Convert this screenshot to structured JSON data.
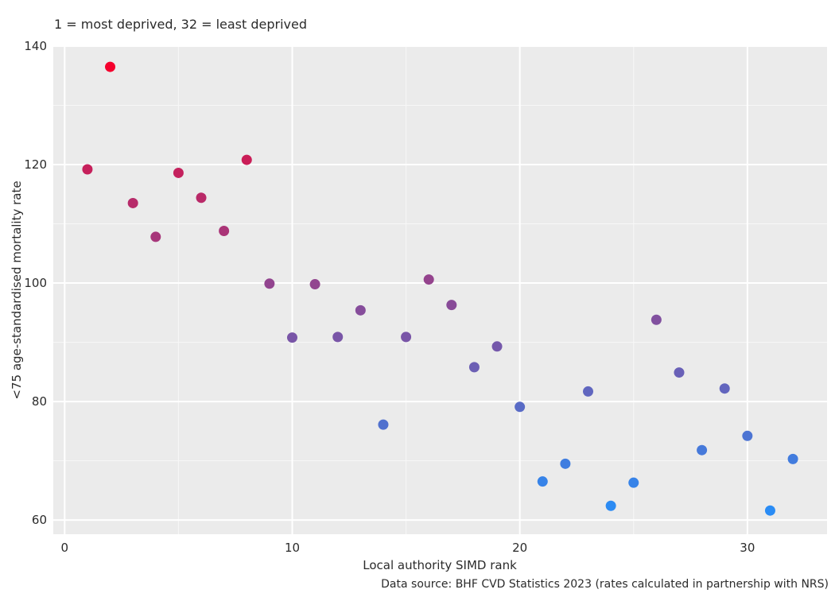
{
  "chart_data": {
    "type": "scatter",
    "subtitle": "1 = most deprived, 32 = least deprived",
    "xlabel": "Local authority SIMD rank",
    "ylabel": "<75 age-standardised mortality rate",
    "caption": "Data source: BHF CVD Statistics 2023 (rates calculated in partnership with NRS)",
    "xlim": [
      -0.5,
      33.5
    ],
    "ylim": [
      57.6,
      140
    ],
    "xticks": [
      0,
      10,
      20,
      30
    ],
    "yticks": [
      60,
      80,
      100,
      120,
      140
    ],
    "grid": true,
    "legend": "none",
    "color_low": "#2a8cf5",
    "color_high": "#f5002d",
    "x": [
      1,
      2,
      3,
      4,
      5,
      6,
      7,
      8,
      9,
      10,
      11,
      12,
      13,
      14,
      15,
      16,
      17,
      18,
      19,
      20,
      21,
      22,
      23,
      24,
      25,
      26,
      27,
      28,
      29,
      30,
      31,
      32
    ],
    "y": [
      119.2,
      136.5,
      113.5,
      107.8,
      118.6,
      114.4,
      108.8,
      120.8,
      99.9,
      90.8,
      99.8,
      90.9,
      95.4,
      76.1,
      90.9,
      100.6,
      96.3,
      85.8,
      89.3,
      79.1,
      66.5,
      69.5,
      81.7,
      62.4,
      66.3,
      93.8,
      84.9,
      71.8,
      82.2,
      74.2,
      61.6,
      70.3
    ]
  }
}
